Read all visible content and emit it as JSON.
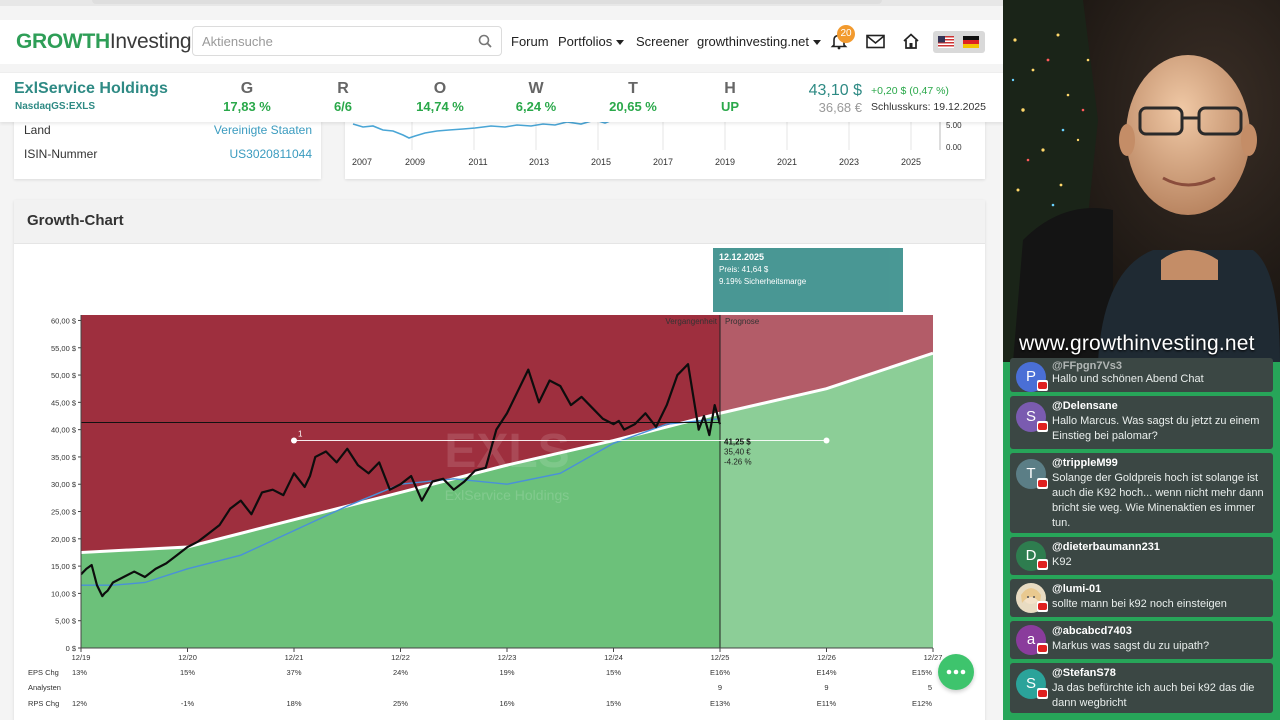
{
  "nav": {
    "logo_growth": "GROWTH",
    "logo_investing": "Investing",
    "search_placeholder": "Aktiensuche",
    "links": [
      {
        "label": "Forum",
        "dropdown": false
      },
      {
        "label": "Portfolios",
        "dropdown": true
      },
      {
        "label": "Screener",
        "dropdown": false
      },
      {
        "label": "growthinvesting.net",
        "dropdown": true
      }
    ],
    "notification_count": "20",
    "icons": [
      "search-icon",
      "bell-icon",
      "mail-icon",
      "home-icon",
      "flag-us-icon",
      "flag-de-icon"
    ]
  },
  "stock": {
    "name": "ExlService Holdings",
    "ticker": "NasdaqGS:EXLS",
    "metrics": [
      {
        "letter": "G",
        "value": "17,83 %"
      },
      {
        "letter": "R",
        "value": "6/6"
      },
      {
        "letter": "O",
        "value": "14,74 %"
      },
      {
        "letter": "W",
        "value": "6,24 %"
      },
      {
        "letter": "T",
        "value": "20,65 %"
      },
      {
        "letter": "H",
        "value": "UP"
      }
    ],
    "price": "43,10 $",
    "price_eur": "36,68 €",
    "change": "+0,20 $ (0,47 %)",
    "closing": "Schlusskurs: 19.12.2025"
  },
  "info": {
    "rows": [
      {
        "key": "Land",
        "value": "Vereinigte Staaten"
      },
      {
        "key": "ISIN-Nummer",
        "value": "US3020811044"
      }
    ]
  },
  "mini_chart": {
    "x_labels": [
      "2007",
      "2009",
      "2011",
      "2013",
      "2015",
      "2017",
      "2019",
      "2021",
      "2023",
      "2025"
    ],
    "y_labels": [
      "5.00",
      "0.00"
    ]
  },
  "growth_chart": {
    "title": "Growth-Chart",
    "tooltip": {
      "date": "12.12.2025",
      "price": "Preis: 41,64 $",
      "margin": "9.19% Sicherheitsmarge"
    },
    "past_label": "Vergangenheit",
    "forecast_label": "Prognose",
    "watermark_ticker": "EXLS",
    "watermark_name": "ExlService Holdings",
    "marker_label": "1",
    "marker_usd": "41,25 $",
    "marker_eur": "35,40 €",
    "marker_pct": "-4.26 %",
    "row_labels": [
      "EPS Chg",
      "Analysten",
      "RPS Chg"
    ],
    "eps_chg": [
      "13%",
      "15%",
      "37%",
      "24%",
      "19%",
      "15%",
      "E16%",
      "E14%",
      "E15%"
    ],
    "analysts": [
      "",
      "",
      "",
      "",
      "",
      "",
      "9",
      "9",
      "5"
    ],
    "rps_chg": [
      "12%",
      "-1%",
      "18%",
      "25%",
      "16%",
      "15%",
      "E13%",
      "E11%",
      "E12%"
    ]
  },
  "chart_data": {
    "type": "line",
    "title": "Growth-Chart",
    "x_tick_labels": [
      "12/19",
      "12/20",
      "12/21",
      "12/22",
      "12/23",
      "12/24",
      "12/25",
      "12/26",
      "12/27"
    ],
    "y_tick_labels": [
      "0 $",
      "5,00 $",
      "10,00 $",
      "15,00 $",
      "20,00 $",
      "25,00 $",
      "30,00 $",
      "35,00 $",
      "40,00 $",
      "45,00 $",
      "50,00 $",
      "55,00 $",
      "60,00 $"
    ],
    "ylim": [
      0,
      61
    ],
    "xlim": [
      0,
      8
    ],
    "series": [
      {
        "kind": "price",
        "x": [
          0,
          0.05,
          0.1,
          0.15,
          0.2,
          0.22,
          0.25,
          0.3,
          0.4,
          0.5,
          0.6,
          0.7,
          0.8,
          0.9,
          1.0,
          1.1,
          1.2,
          1.3,
          1.4,
          1.5,
          1.6,
          1.7,
          1.8,
          1.9,
          2.0,
          2.1,
          2.15,
          2.2,
          2.3,
          2.4,
          2.5,
          2.6,
          2.7,
          2.8,
          2.9,
          3.0,
          3.1,
          3.2,
          3.3,
          3.4,
          3.5,
          3.6,
          3.7,
          3.8,
          3.9,
          4.0,
          4.1,
          4.2,
          4.3,
          4.4,
          4.5,
          4.6,
          4.7,
          4.8,
          4.9,
          5.0,
          5.05,
          5.1,
          5.2,
          5.3,
          5.4,
          5.5,
          5.6,
          5.7,
          5.8,
          5.85,
          5.9,
          5.95,
          6.0
        ],
        "y": [
          13.5,
          14.5,
          15.2,
          11.5,
          9.5,
          10,
          10.5,
          12,
          13,
          14,
          13,
          14.5,
          15.5,
          17,
          18.5,
          19.5,
          21,
          22.5,
          25.5,
          27,
          24.5,
          28.5,
          29,
          28,
          32,
          29.5,
          31.5,
          35,
          36,
          34,
          36.5,
          33.5,
          32,
          34,
          29,
          30,
          31.5,
          27,
          30.5,
          31,
          29,
          30.5,
          32.5,
          33,
          40,
          43,
          47,
          51,
          45,
          49,
          48,
          44.5,
          46,
          44,
          42,
          41,
          41.6,
          40,
          41,
          43,
          40.5,
          44.5,
          50,
          52,
          40,
          42.5,
          39,
          44.5,
          41
        ]
      },
      {
        "kind": "fair-value",
        "x": [
          0,
          1,
          1.5,
          2,
          2.5,
          3,
          4,
          5,
          6,
          7,
          8
        ],
        "y": [
          17.5,
          18.5,
          21,
          23.5,
          26,
          28.5,
          33.5,
          38,
          43,
          47.5,
          54
        ]
      },
      {
        "kind": "moving-average",
        "x": [
          0,
          0.3,
          0.6,
          1,
          1.5,
          2,
          2.5,
          3,
          3.5,
          4,
          4.5,
          5,
          5.5,
          6
        ],
        "y": [
          11.5,
          11.5,
          12,
          14.5,
          17,
          21.5,
          26,
          30,
          31,
          30,
          32,
          37.5,
          41,
          42
        ]
      }
    ],
    "horizontal_line": 41.3,
    "marker_line": {
      "value": 38,
      "x_start": 2.0,
      "x_end": 7.0
    },
    "split_x": 6.0
  },
  "chat": {
    "stream_url": "www.growthinvesting.net",
    "messages": [
      {
        "user": "@FFpgn7Vs3",
        "text": "Hallo und schönen Abend Chat",
        "initial": "P",
        "color": "#4a6fd6"
      },
      {
        "user": "@Delensane",
        "text": "Hallo Marcus. Was sagst du jetzt zu einem Einstieg bei palomar?",
        "initial": "S",
        "color": "#7a5bb0"
      },
      {
        "user": "@trippleM99",
        "text": "Solange der Goldpreis hoch ist solange ist auch die K92 hoch... wenn nicht mehr dann bricht sie weg. Wie Minenaktien es immer tun.",
        "initial": "T",
        "color": "#5b7e86"
      },
      {
        "user": "@dieterbaumann231",
        "text": "K92",
        "initial": "D",
        "color": "#2e7d4f"
      },
      {
        "user": "@lumi-01",
        "text": "sollte mann bei k92 noch einsteigen",
        "initial": "",
        "color": "#e8dcc2"
      },
      {
        "user": "@abcabcd7403",
        "text": "Markus was sagst du zu uipath?",
        "initial": "a",
        "color": "#8a3c9c"
      },
      {
        "user": "@StefanS78",
        "text": "Ja das befürchte ich auch bei k92 das die dann wegbricht",
        "initial": "S",
        "color": "#2ba39a"
      }
    ]
  },
  "colors": {
    "brand_green": "#2e9e57",
    "teal": "#2e8a84",
    "overvalued": "#9e2f3e",
    "undervalued": "#6cc17a",
    "chat_bg": "#27a559"
  }
}
